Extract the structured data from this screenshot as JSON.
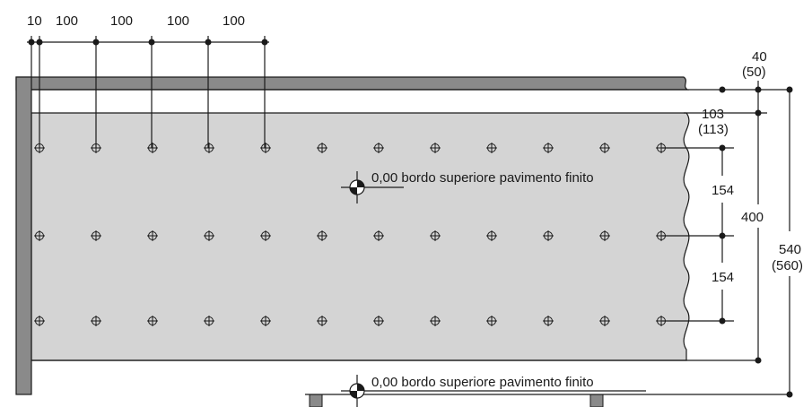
{
  "top_dimensions": [
    "10",
    "100",
    "100",
    "100",
    "100"
  ],
  "right_top_dimension": {
    "value": "40",
    "alt": "(50)"
  },
  "right_offset_dimension": {
    "value": "103",
    "alt": "(113)"
  },
  "spacing_upper": "154",
  "spacing_lower": "154",
  "panel_height": "400",
  "total_height": {
    "value": "540",
    "alt": "(560)"
  },
  "reference_label_upper": "0,00 bordo superiore pavimento finito",
  "reference_label_lower": "0,00 bordo superiore pavimento finito",
  "hole_grid": {
    "columns": 12,
    "rows": 3
  },
  "colors": {
    "panel_fill": "#d4d4d4",
    "frame_fill": "#8a8a8a",
    "ink": "#1a1a1a"
  }
}
